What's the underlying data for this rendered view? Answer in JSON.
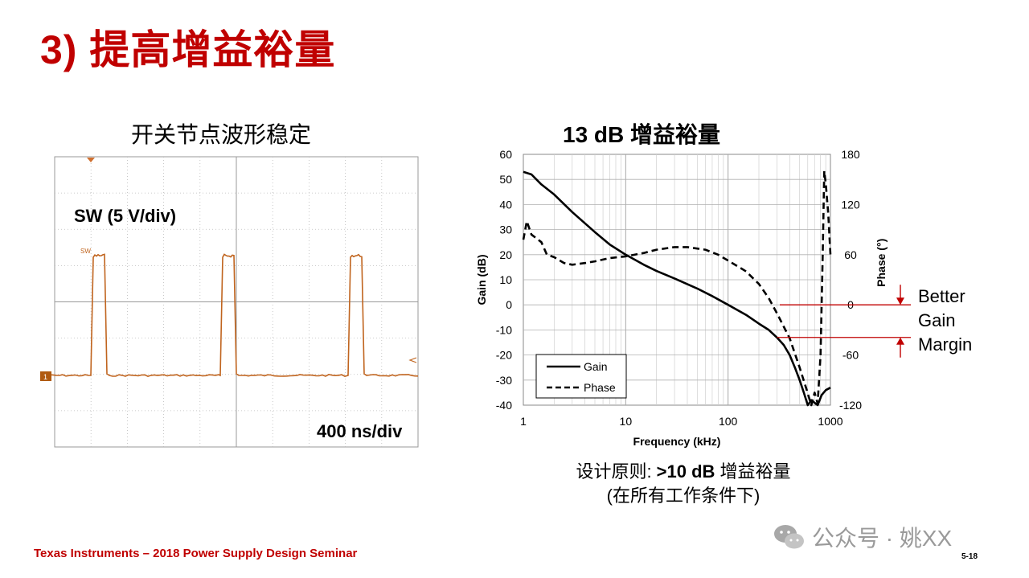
{
  "slide": {
    "title": "3) 提高增益裕量",
    "scope_title": "开关节点波形稳定",
    "bode_title": "13 dB 增益裕量",
    "design_rule_line1_prefix": "设计原则: ",
    "design_rule_line1_bold": ">10 dB",
    "design_rule_line1_suffix": " 增益裕量",
    "design_rule_line2": "(在所有工作条件下)",
    "footer": "Texas Instruments – 2018 Power Supply Design Seminar",
    "page_number": "5-18",
    "watermark": "公众号 · 姚XX"
  },
  "scope": {
    "channel_label": "SW (5 V/div)",
    "trace_tag": "SW",
    "timebase": "400 ns/div",
    "channel_marker": "1",
    "trace_color": "#c0641e",
    "pulses_in_view": 3
  },
  "chart_data": {
    "type": "line",
    "x_scale": "log",
    "xlim": [
      1,
      1000
    ],
    "xlabel": "Frequency (kHz)",
    "x_ticks": [
      "1",
      "10",
      "100",
      "1000"
    ],
    "ylabel_left": "Gain (dB)",
    "ylim_left": [
      -40,
      60
    ],
    "y_ticks_left": [
      "60",
      "50",
      "40",
      "30",
      "20",
      "10",
      "0",
      "-10",
      "-20",
      "-30",
      "-40"
    ],
    "ylabel_right": "Phase (°)",
    "ylim_right": [
      -120,
      180
    ],
    "y_ticks_right": [
      "180",
      "120",
      "60",
      "0",
      "-60",
      "-120"
    ],
    "grid": true,
    "legend_position": "bottom-left",
    "series": [
      {
        "name": "Gain",
        "axis": "left",
        "style": "solid",
        "points": [
          [
            1,
            53
          ],
          [
            1.2,
            52
          ],
          [
            1.5,
            48
          ],
          [
            2,
            44
          ],
          [
            3,
            37
          ],
          [
            5,
            29
          ],
          [
            7,
            24
          ],
          [
            10,
            20
          ],
          [
            15,
            16
          ],
          [
            20,
            13.5
          ],
          [
            30,
            10.5
          ],
          [
            50,
            6.5
          ],
          [
            70,
            3.5
          ],
          [
            100,
            0
          ],
          [
            150,
            -4
          ],
          [
            200,
            -7.5
          ],
          [
            250,
            -10
          ],
          [
            300,
            -13
          ],
          [
            350,
            -16
          ],
          [
            400,
            -20
          ],
          [
            450,
            -25
          ],
          [
            500,
            -30
          ],
          [
            550,
            -35
          ],
          [
            600,
            -40
          ],
          [
            650,
            -38
          ],
          [
            750,
            -40
          ],
          [
            820,
            -36
          ],
          [
            900,
            -34
          ],
          [
            1000,
            -33
          ]
        ]
      },
      {
        "name": "Phase",
        "axis": "right",
        "style": "dashed",
        "points": [
          [
            1,
            78
          ],
          [
            1.08,
            100
          ],
          [
            1.2,
            84
          ],
          [
            1.5,
            75
          ],
          [
            1.7,
            60
          ],
          [
            2,
            57
          ],
          [
            2.5,
            50
          ],
          [
            3,
            48
          ],
          [
            4,
            50
          ],
          [
            5,
            52
          ],
          [
            7,
            56
          ],
          [
            10,
            58
          ],
          [
            15,
            62
          ],
          [
            20,
            66
          ],
          [
            30,
            69
          ],
          [
            40,
            69
          ],
          [
            60,
            66
          ],
          [
            80,
            60
          ],
          [
            100,
            53
          ],
          [
            150,
            40
          ],
          [
            200,
            25
          ],
          [
            250,
            8
          ],
          [
            300,
            -10
          ],
          [
            400,
            -40
          ],
          [
            500,
            -75
          ],
          [
            580,
            -100
          ],
          [
            650,
            -120
          ],
          [
            700,
            -105
          ],
          [
            750,
            -118
          ],
          [
            800,
            -60
          ],
          [
            840,
            60
          ],
          [
            870,
            160
          ],
          [
            900,
            145
          ],
          [
            950,
            110
          ],
          [
            1000,
            60
          ]
        ]
      }
    ],
    "annotations": [
      "Better",
      "Gain",
      "Margin"
    ],
    "annotation_color": "#c00000"
  }
}
